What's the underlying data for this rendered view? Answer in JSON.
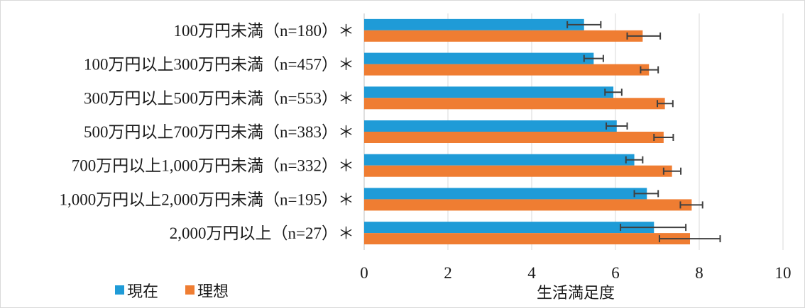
{
  "chart_data": {
    "type": "bar",
    "orientation": "horizontal",
    "categories": [
      "100万円未満（n=180）＊",
      "100万円以上300万円未満（n=457）＊",
      "300万円以上500万円未満（n=553）＊",
      "500万円以上700万円未満（n=383）＊",
      "700万円以上1,000万円未満（n=332）＊",
      "1,000万円以上2,000万円未満（n=195）＊",
      "2,000万円以上（n=27）＊"
    ],
    "series": [
      {
        "name": "現在",
        "color": "#1f9bd7",
        "values": [
          5.25,
          5.48,
          5.95,
          6.03,
          6.45,
          6.75,
          6.92
        ],
        "error_low": [
          4.85,
          5.25,
          5.75,
          5.78,
          6.25,
          6.45,
          6.12
        ],
        "error_high": [
          5.65,
          5.71,
          6.15,
          6.28,
          6.65,
          7.02,
          7.68
        ]
      },
      {
        "name": "理想",
        "color": "#ef7d32",
        "values": [
          6.65,
          6.8,
          7.18,
          7.15,
          7.35,
          7.82,
          7.78
        ],
        "error_low": [
          6.28,
          6.6,
          7.0,
          6.92,
          7.15,
          7.55,
          7.05
        ],
        "error_high": [
          7.07,
          7.02,
          7.37,
          7.38,
          7.56,
          8.08,
          8.5
        ]
      }
    ],
    "xlabel": "生活満足度",
    "xlim": [
      0,
      10
    ],
    "xticks": [
      "0",
      "2",
      "4",
      "6",
      "8",
      "10"
    ],
    "grid": true,
    "legend_position": "bottom-left"
  }
}
